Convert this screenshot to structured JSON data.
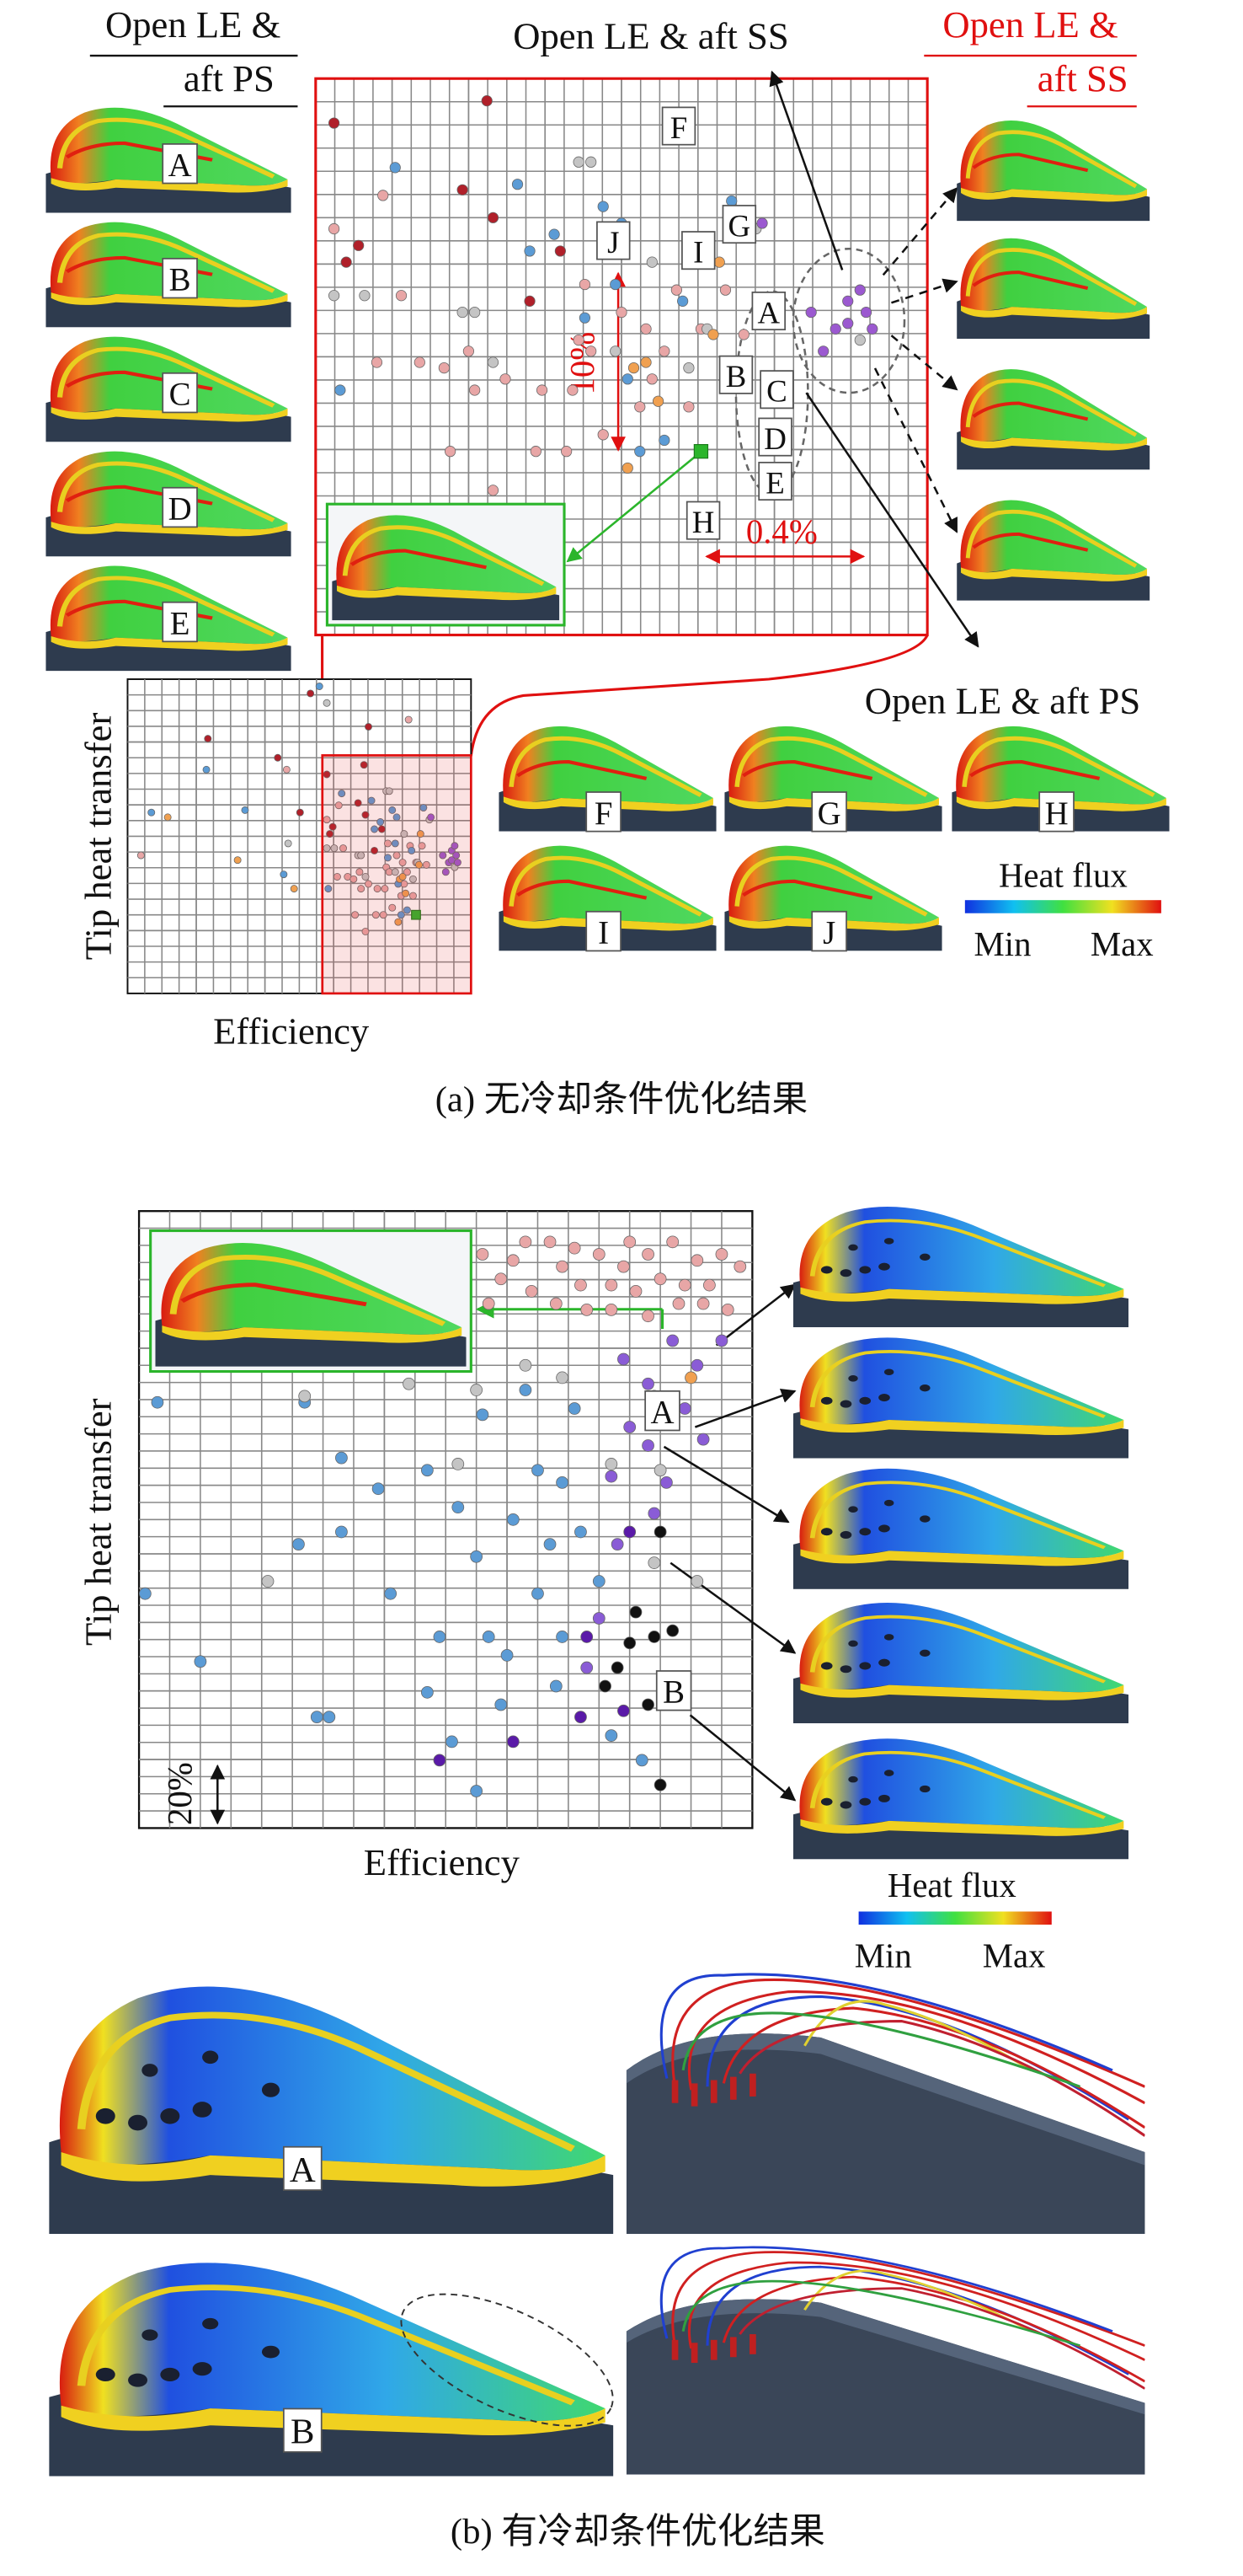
{
  "panel_a": {
    "left_header": [
      "Open LE &",
      "aft PS"
    ],
    "top_title": "Open LE & aft SS",
    "right_header": [
      "Open LE &",
      "aft SS"
    ],
    "bottom_right_label": "Open LE & aft PS",
    "left_thumbnails": [
      "A",
      "B",
      "C",
      "D",
      "E"
    ],
    "bottom_thumbnails": [
      "F",
      "G",
      "H",
      "I",
      "J"
    ],
    "zoom": {
      "xlim": [
        0,
        100
      ],
      "ylim": [
        0,
        100
      ],
      "point_labels": [
        "F",
        "J",
        "I",
        "G",
        "A",
        "B",
        "C",
        "D",
        "E",
        "H"
      ],
      "vertical_annotation": "10%",
      "horizontal_annotation": "0.4%"
    },
    "overview": {
      "xlim": [
        -131,
        100
      ],
      "ylim": [
        0,
        132
      ],
      "x_label": "Efficiency",
      "y_label": "Tip heat transfer"
    },
    "series": [
      {
        "color": "#b0202a",
        "x": [
          3,
          7,
          28,
          29,
          35,
          40,
          5,
          24,
          -8,
          -77,
          -15,
          -30,
          31
        ],
        "y": [
          92,
          70,
          96,
          75,
          60,
          69,
          67,
          80,
          126,
          107,
          76,
          99,
          112
        ]
      },
      {
        "color": "#e8a6a6",
        "x": [
          3,
          11,
          17,
          21,
          25,
          26,
          31,
          37,
          42,
          43,
          44,
          50,
          54,
          55,
          59,
          63,
          67,
          70,
          47,
          41,
          36,
          61,
          53,
          29,
          22,
          10,
          14,
          45,
          57,
          -122,
          -24,
          58
        ],
        "y": [
          73,
          79,
          49,
          48,
          51,
          44,
          46,
          44,
          44,
          53,
          63,
          58,
          55,
          46,
          62,
          55,
          62,
          54,
          36,
          33,
          33,
          41,
          41,
          26,
          33,
          49,
          61,
          51,
          51,
          58,
          94,
          115
        ]
      },
      {
        "color": "#5b9bd5",
        "x": [
          13,
          4,
          33,
          39,
          47,
          50,
          44,
          60,
          68,
          49,
          51,
          35,
          53,
          57,
          -115,
          -78,
          -26,
          -52,
          -2
        ],
        "y": [
          84,
          44,
          81,
          72,
          77,
          74,
          57,
          60,
          78,
          63,
          46,
          69,
          33,
          35,
          76,
          94,
          50,
          77,
          129
        ]
      },
      {
        "color": "#c4c4c4",
        "x": [
          3,
          8,
          24,
          26,
          29,
          43,
          45,
          55,
          64,
          72,
          49,
          61,
          89,
          -23,
          3
        ],
        "y": [
          61,
          61,
          58,
          58,
          49,
          85,
          85,
          67,
          55,
          73,
          51,
          48,
          53,
          63,
          122
        ]
      },
      {
        "color": "#f0a050",
        "x": [
          52,
          54,
          51,
          65,
          56,
          66,
          -104,
          -57,
          -19
        ],
        "y": [
          48,
          49,
          30,
          54,
          42,
          67,
          74,
          56,
          44
        ]
      },
      {
        "color": "#9b59d0",
        "x": [
          73,
          87,
          89,
          90,
          85,
          81,
          83,
          87,
          91
        ],
        "y": [
          74,
          60,
          62,
          58,
          55,
          58,
          51,
          56,
          55
        ]
      },
      {
        "color": "#2bb52b",
        "marker": "square",
        "x": [
          63
        ],
        "y": [
          33
        ]
      }
    ],
    "legend": {
      "title": "Heat flux",
      "min": "Min",
      "max": "Max"
    },
    "caption": "(a) 无冷却条件优化结果"
  },
  "panel_b": {
    "plot": {
      "xlim": [
        0,
        100
      ],
      "ylim": [
        0,
        100
      ],
      "x_label": "Efficiency",
      "y_label": "Tip heat transfer",
      "point_labels": [
        "A",
        "B"
      ],
      "scale_label": "20%",
      "series": [
        {
          "color": "#e8a6a6",
          "x": [
            56,
            59,
            61,
            64,
            67,
            69,
            72,
            75,
            77,
            79,
            81,
            83,
            85,
            88,
            91,
            93,
            96,
            98,
            57,
            63,
            68,
            73,
            80,
            87,
            92,
            95,
            71,
            83,
            77,
            89
          ],
          "y": [
            93,
            89,
            92,
            87,
            95,
            91,
            88,
            93,
            84,
            91,
            87,
            93,
            89,
            85,
            92,
            88,
            84,
            91,
            85,
            95,
            85,
            84,
            95,
            95,
            85,
            93,
            94,
            83,
            88,
            88
          ]
        },
        {
          "color": "#8a5cd6",
          "x": [
            79,
            83,
            87,
            91,
            95,
            89,
            92,
            83,
            86,
            80,
            77,
            84,
            78,
            75,
            73,
            84
          ],
          "y": [
            76,
            72,
            79,
            75,
            79,
            68,
            63,
            62,
            56,
            65,
            57,
            51,
            46,
            34,
            26,
            70
          ]
        },
        {
          "color": "#5a1aa8",
          "x": [
            72,
            79,
            49,
            61,
            80,
            73
          ],
          "y": [
            18,
            19,
            11,
            14,
            48,
            31
          ]
        },
        {
          "color": "#111111",
          "x": [
            85,
            84,
            78,
            76,
            80,
            83,
            85,
            87,
            81
          ],
          "y": [
            48,
            31,
            26,
            23,
            30,
            20,
            7,
            32,
            35
          ]
        },
        {
          "color": "#5b9bd5",
          "x": [
            3,
            10,
            26,
            33,
            27,
            41,
            39,
            47,
            49,
            55,
            51,
            57,
            60,
            63,
            61,
            65,
            67,
            69,
            71,
            69,
            68,
            72,
            75,
            65,
            55,
            59,
            77,
            82,
            47,
            31,
            29,
            1,
            33,
            52,
            56
          ],
          "y": [
            69,
            27,
            46,
            48,
            69,
            38,
            55,
            22,
            31,
            6,
            14,
            31,
            28,
            71,
            50,
            58,
            46,
            56,
            68,
            31,
            23,
            48,
            40,
            38,
            44,
            20,
            15,
            11,
            58,
            18,
            18,
            38,
            60,
            52,
            67
          ]
        },
        {
          "color": "#c4c4c4",
          "x": [
            21,
            27,
            55,
            63,
            69,
            77,
            84,
            85,
            91,
            52,
            44
          ],
          "y": [
            40,
            70,
            71,
            75,
            73,
            59,
            43,
            58,
            40,
            59,
            72
          ]
        },
        {
          "color": "#f0a050",
          "x": [
            90
          ],
          "y": [
            73
          ]
        }
      ]
    },
    "legend": {
      "title": "Heat flux",
      "min": "Min",
      "max": "Max"
    },
    "detail_labels": [
      "A",
      "B"
    ],
    "caption": "(b) 有冷却条件优化结果"
  }
}
